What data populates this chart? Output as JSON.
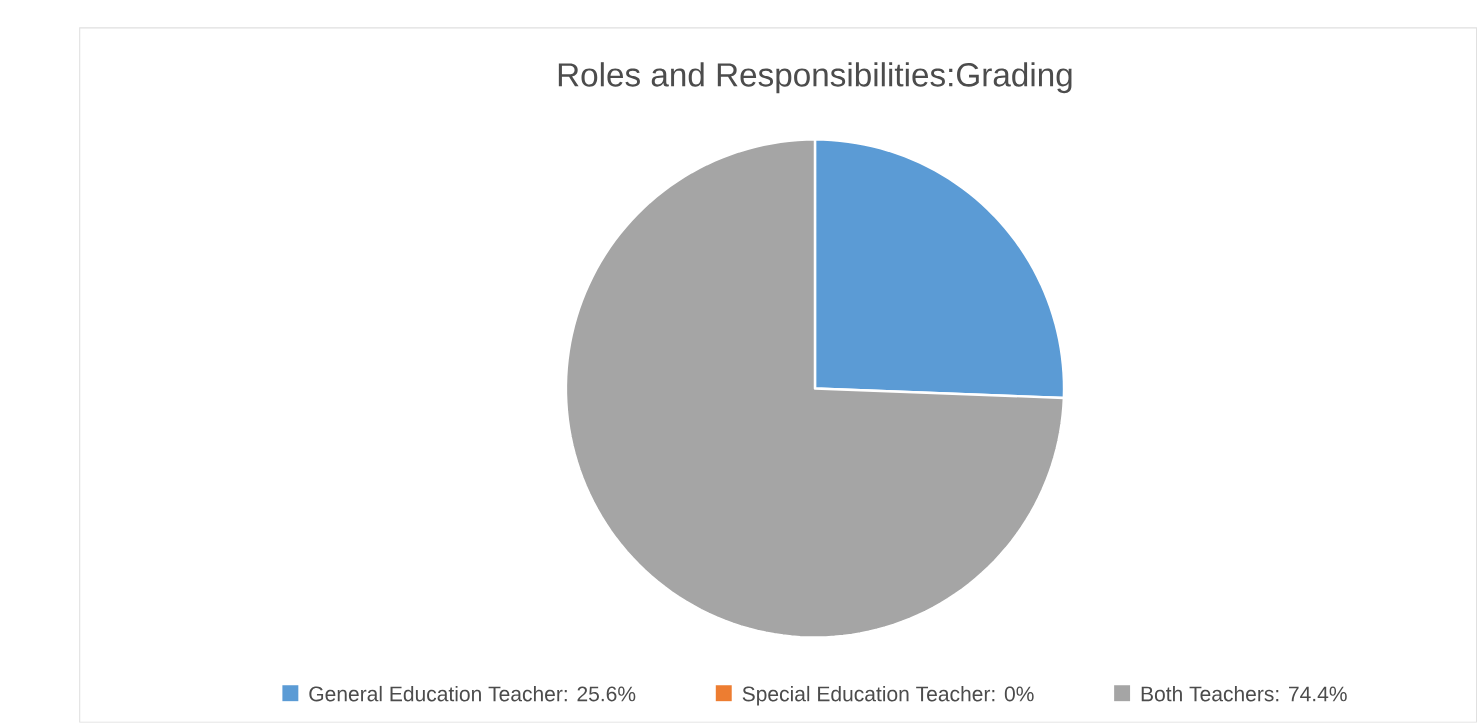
{
  "chart_data": {
    "type": "pie",
    "title": "Roles and Responsibilities:Grading",
    "categories": [
      "General Education Teacher: 25.6%",
      "Special Education Teacher: 0%",
      "Both Teachers: 74.4%"
    ],
    "values": [
      25.6,
      0,
      74.4
    ],
    "colors": [
      "#5b9bd5",
      "#ed7d31",
      "#a5a5a5"
    ],
    "legend": "bottom"
  }
}
